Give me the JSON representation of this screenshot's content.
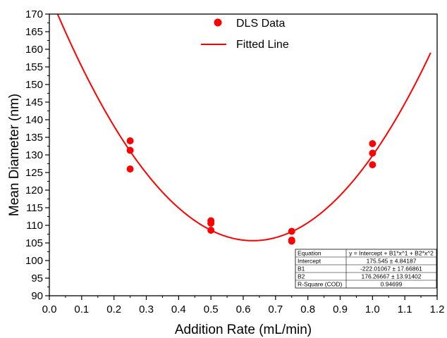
{
  "chart_data": {
    "type": "scatter",
    "xlabel": "Addition Rate (mL/min)",
    "ylabel": "Mean Diameter (nm)",
    "xlim": [
      0.0,
      1.2
    ],
    "ylim": [
      90,
      170
    ],
    "x_ticks": [
      "0.0",
      "0.1",
      "0.2",
      "0.3",
      "0.4",
      "0.5",
      "0.6",
      "0.7",
      "0.8",
      "0.9",
      "1.0",
      "1.1",
      "1.2"
    ],
    "y_ticks": [
      "90",
      "95",
      "100",
      "105",
      "110",
      "115",
      "120",
      "125",
      "130",
      "135",
      "140",
      "145",
      "150",
      "155",
      "160",
      "165",
      "170"
    ],
    "grid": false,
    "legend_position": "top-center",
    "series": [
      {
        "name": "DLS Data",
        "kind": "scatter",
        "color": "#ff0000",
        "points": [
          [
            0.25,
            134.0
          ],
          [
            0.25,
            131.3
          ],
          [
            0.25,
            126.0
          ],
          [
            0.5,
            111.3
          ],
          [
            0.5,
            110.6
          ],
          [
            0.5,
            108.6
          ],
          [
            0.75,
            108.3
          ],
          [
            0.75,
            105.8
          ],
          [
            0.75,
            105.5
          ],
          [
            1.0,
            133.2
          ],
          [
            1.0,
            130.5
          ],
          [
            1.0,
            127.2
          ]
        ]
      },
      {
        "name": "Fitted Line",
        "kind": "line",
        "color": "#ff0000",
        "model": {
          "intercept": 175.545,
          "b1": -222.01067,
          "b2": 176.26667
        },
        "x_range": [
          0.0,
          1.18
        ]
      }
    ],
    "fit_table": {
      "rows": [
        [
          "Equation",
          "y = Intercept + B1*x^1 + B2*x^2"
        ],
        [
          "Intercept",
          "175.545 ± 4.84187"
        ],
        [
          "B1",
          "-222.01067 ± 17.66861"
        ],
        [
          "B2",
          "176.26667 ± 13.91402"
        ],
        [
          "R-Square (COD)",
          "0.94699"
        ]
      ]
    }
  }
}
